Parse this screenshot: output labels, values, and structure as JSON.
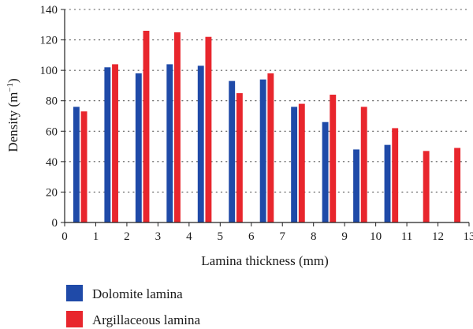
{
  "chart_data": {
    "type": "bar",
    "title": "",
    "xlabel": "Lamina thickness (mm)",
    "ylabel_main": "Density (m",
    "ylabel_sup": "−1",
    "ylabel_end": ")",
    "xlim": [
      0,
      13
    ],
    "ylim": [
      0,
      140
    ],
    "xticks": [
      "0",
      "1",
      "2",
      "3",
      "4",
      "5",
      "6",
      "7",
      "8",
      "9",
      "10",
      "11",
      "12",
      "13"
    ],
    "yticks": [
      "0",
      "20",
      "40",
      "60",
      "80",
      "100",
      "120",
      "140"
    ],
    "grid": "horizontal-dotted",
    "legend_position": "bottom-left",
    "series": [
      {
        "name": "Dolomite lamina",
        "color": "#1f4aa8",
        "x": [
          0.5,
          1.5,
          2.5,
          3.5,
          4.5,
          5.5,
          6.5,
          7.5,
          8.5,
          9.5,
          10.5
        ],
        "values": [
          76,
          102,
          98,
          104,
          103,
          93,
          94,
          76,
          66,
          48,
          51
        ]
      },
      {
        "name": "Argillaceous lamina",
        "color": "#e8262d",
        "x": [
          0.5,
          1.5,
          2.5,
          3.5,
          4.5,
          5.5,
          6.5,
          7.5,
          8.5,
          9.5,
          10.5,
          11.5,
          12.5
        ],
        "values": [
          73,
          104,
          126,
          125,
          122,
          85,
          98,
          78,
          84,
          76,
          62,
          47,
          49
        ]
      }
    ]
  }
}
